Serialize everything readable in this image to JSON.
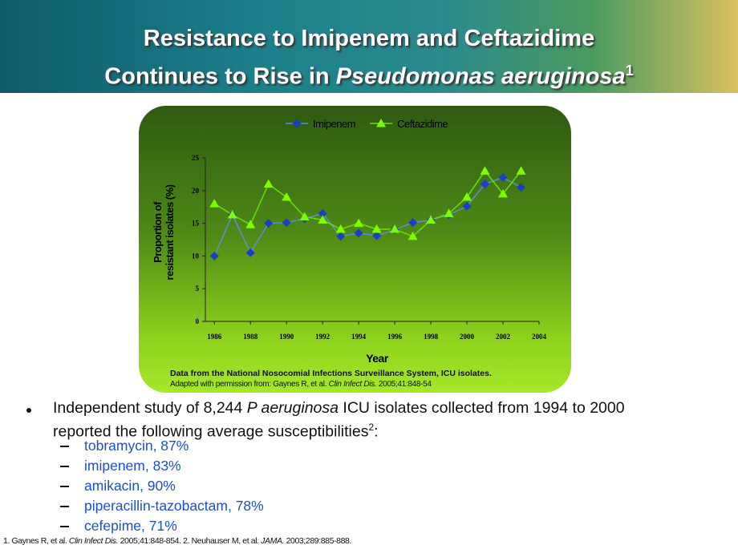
{
  "header": {
    "title_line1": "Resistance to Imipenem and Ceftazidime",
    "title_line2": [
      "Continues to Rise in ",
      "Pseudomonas aeruginosa",
      "1"
    ]
  },
  "chart_data": {
    "type": "line",
    "legend": "top",
    "grid": false,
    "x": [
      1986,
      1987,
      1988,
      1989,
      1990,
      1991,
      1992,
      1993,
      1994,
      1995,
      1996,
      1997,
      1998,
      1999,
      2000,
      2001,
      2002,
      2003
    ],
    "series": [
      {
        "name": "Imipenem",
        "color": "#1a3fc4",
        "line_color": "#5b8fd9",
        "marker": "diamond",
        "values": [
          10,
          16.3,
          10.5,
          15,
          15.1,
          15.7,
          16.5,
          13,
          13.5,
          13.1,
          14,
          15.1,
          15.5,
          16.3,
          17.6,
          21,
          22,
          20.5
        ]
      },
      {
        "name": "Ceftazidime",
        "color": "#7cfc00",
        "line_color": "#66e000",
        "marker": "triangle",
        "values": [
          18,
          16.3,
          14.8,
          21,
          19,
          16,
          15.5,
          14.1,
          15,
          14.1,
          14.1,
          13,
          15.5,
          16.5,
          19,
          23,
          19.5,
          23
        ]
      }
    ],
    "xlim": [
      1985.5,
      2004
    ],
    "xticks": [
      1986,
      1988,
      1990,
      1992,
      1994,
      1996,
      1998,
      2000,
      2002,
      2004
    ],
    "ylim": [
      0,
      25
    ],
    "yticks": [
      0,
      5,
      10,
      15,
      20,
      25
    ],
    "xlabel": "Year",
    "ylabel": [
      "Proportion of",
      "resistant isolates (%)"
    ],
    "note": "Data from the National Nosocomial Infections Surveillance System, ICU isolates.",
    "source": [
      "Adapted with permission from: Gaynes R, et al. ",
      "Clin Infect Dis.",
      " 2005;41:848-54"
    ]
  },
  "bullet": {
    "text": [
      "Independent study of 8,244 ",
      "P aeruginosa",
      " ICU isolates collected from 1994 to 2000 reported the following average susceptibilities",
      "2",
      ":"
    ],
    "items": [
      "tobramycin, 87%",
      "imipenem, 83%",
      "amikacin, 90%",
      "piperacillin-tazobactam, 78%",
      "cefepime, 71%"
    ]
  },
  "footnote": [
    "1. Gaynes R, et al. ",
    "Clin Infect Dis.",
    " 2005;41:848-854.  2. Neuhauser M, et al. ",
    "JAMA.",
    " 2003;289:885-888."
  ]
}
